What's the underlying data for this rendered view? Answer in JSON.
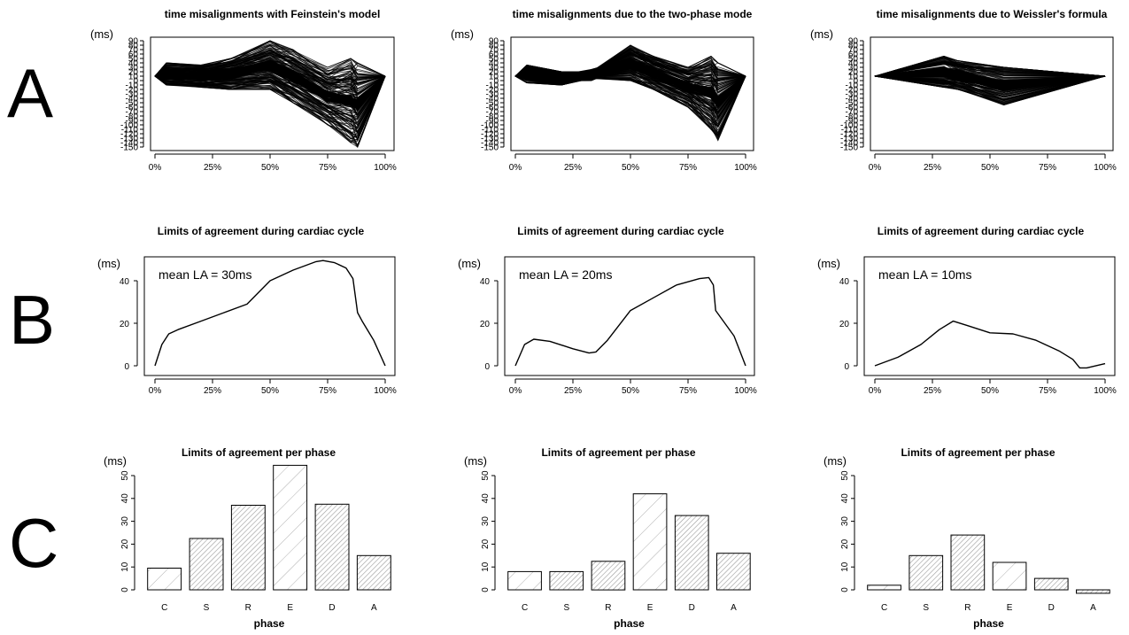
{
  "row_labels": [
    "A",
    "B",
    "C"
  ],
  "chart_data": [
    {
      "panel": "A1",
      "type": "line",
      "title": "time misalignments with Feinstein's model",
      "unit_label": "(ms)",
      "xticks": [
        "0%",
        "25%",
        "50%",
        "75%",
        "100%"
      ],
      "yticks": [
        90,
        80,
        70,
        60,
        50,
        40,
        30,
        20,
        10,
        0,
        -10,
        -20,
        -30,
        -40,
        -50,
        -60,
        -70,
        -80,
        -90,
        -100,
        -110,
        -120,
        -130,
        -140,
        -150
      ],
      "xlim": [
        0,
        100
      ],
      "ylim": [
        -150,
        90
      ],
      "description_of_series": "many overlapping subject curves",
      "series_envelope": {
        "x": [
          0,
          5,
          20,
          33,
          50,
          60,
          75,
          85,
          88,
          100
        ],
        "upper": [
          10,
          40,
          35,
          50,
          90,
          70,
          30,
          50,
          40,
          10
        ],
        "lower": [
          10,
          -10,
          -15,
          -20,
          -20,
          -50,
          -100,
          -140,
          -150,
          10
        ]
      }
    },
    {
      "panel": "A2",
      "type": "line",
      "title": "time misalignments due to the two-phase mode",
      "unit_label": "(ms)",
      "xticks": [
        "0%",
        "25%",
        "50%",
        "75%",
        "100%"
      ],
      "yticks": [
        90,
        80,
        70,
        60,
        50,
        40,
        30,
        20,
        10,
        0,
        -10,
        -20,
        -30,
        -40,
        -50,
        -60,
        -70,
        -80,
        -90,
        -100,
        -110,
        -120,
        -130,
        -140,
        -150
      ],
      "xlim": [
        0,
        100
      ],
      "ylim": [
        -150,
        90
      ],
      "description_of_series": "many overlapping subject curves",
      "series_envelope": {
        "x": [
          0,
          5,
          20,
          33,
          50,
          60,
          75,
          85,
          88,
          100
        ],
        "upper": [
          10,
          35,
          20,
          20,
          80,
          55,
          30,
          55,
          40,
          10
        ],
        "lower": [
          10,
          -5,
          -10,
          5,
          0,
          -20,
          -60,
          -110,
          -135,
          10
        ]
      }
    },
    {
      "panel": "A3",
      "type": "line",
      "title": "time misalignments due to Weissler's formula",
      "unit_label": "(ms)",
      "xticks": [
        "0%",
        "25%",
        "50%",
        "75%",
        "100%"
      ],
      "yticks": [
        90,
        80,
        70,
        60,
        50,
        40,
        30,
        20,
        10,
        0,
        -10,
        -20,
        -30,
        -40,
        -50,
        -60,
        -70,
        -80,
        -90,
        -100,
        -110,
        -120,
        -130,
        -140,
        -150
      ],
      "xlim": [
        0,
        100
      ],
      "ylim": [
        -150,
        90
      ],
      "description_of_series": "many overlapping subject curves",
      "series_envelope": {
        "x": [
          0,
          30,
          36,
          56,
          100
        ],
        "upper": [
          10,
          55,
          45,
          30,
          10
        ],
        "lower": [
          10,
          -15,
          -20,
          -55,
          10
        ]
      }
    },
    {
      "panel": "B1",
      "type": "line",
      "title": "Limits of agreement during cardiac cycle",
      "unit_label": "(ms)",
      "annotation": "mean LA = 30ms",
      "xticks": [
        "0%",
        "25%",
        "50%",
        "75%",
        "100%"
      ],
      "yticks": [
        0,
        20,
        40
      ],
      "xlim": [
        0,
        100
      ],
      "ylim": [
        0,
        50
      ],
      "x": [
        0,
        3,
        6,
        10,
        20,
        30,
        40,
        50,
        60,
        70,
        73,
        78,
        83,
        86,
        88,
        90,
        95,
        100
      ],
      "y": [
        0,
        10,
        15,
        17,
        21,
        25,
        29,
        40,
        45,
        49,
        49.5,
        48.5,
        46,
        41,
        25,
        21,
        12,
        0
      ]
    },
    {
      "panel": "B2",
      "type": "line",
      "title": "Limits of agreement during cardiac cycle",
      "unit_label": "(ms)",
      "annotation": "mean LA = 20ms",
      "xticks": [
        "0%",
        "25%",
        "50%",
        "75%",
        "100%"
      ],
      "yticks": [
        0,
        20,
        40
      ],
      "xlim": [
        0,
        100
      ],
      "ylim": [
        0,
        50
      ],
      "x": [
        0,
        4,
        8,
        15,
        25,
        32,
        35,
        40,
        50,
        60,
        70,
        80,
        84,
        86,
        87,
        95,
        100
      ],
      "y": [
        0,
        10,
        12.5,
        11.5,
        8,
        6,
        6.5,
        12,
        26,
        32,
        38,
        41,
        41.5,
        38,
        26,
        14,
        0
      ]
    },
    {
      "panel": "B3",
      "type": "line",
      "title": "Limits of agreement during cardiac cycle",
      "unit_label": "(ms)",
      "annotation": "mean LA = 10ms",
      "xticks": [
        "0%",
        "25%",
        "50%",
        "75%",
        "100%"
      ],
      "yticks": [
        0,
        20,
        40
      ],
      "xlim": [
        0,
        100
      ],
      "ylim": [
        0,
        50
      ],
      "x": [
        0,
        10,
        20,
        28,
        34,
        40,
        50,
        60,
        70,
        80,
        86,
        89,
        92,
        100
      ],
      "y": [
        0,
        4,
        10,
        17,
        21,
        19,
        15.5,
        15,
        12,
        7,
        3,
        -1,
        -1,
        1
      ]
    },
    {
      "panel": "C1",
      "type": "bar",
      "title": "Limits of agreement per phase",
      "unit_label": "(ms)",
      "xlabel": "phase",
      "categories": [
        "C",
        "S",
        "R",
        "E",
        "D",
        "A"
      ],
      "values": [
        9.5,
        22.5,
        37,
        54.5,
        37.5,
        15
      ],
      "yticks": [
        0,
        10,
        20,
        30,
        40,
        50
      ],
      "ylim": [
        0,
        50
      ]
    },
    {
      "panel": "C2",
      "type": "bar",
      "title": "Limits of agreement per phase",
      "unit_label": "(ms)",
      "xlabel": "phase",
      "categories": [
        "C",
        "S",
        "R",
        "E",
        "D",
        "A"
      ],
      "values": [
        8,
        8,
        12.5,
        42,
        32.5,
        16
      ],
      "yticks": [
        0,
        10,
        20,
        30,
        40,
        50
      ],
      "ylim": [
        0,
        50
      ]
    },
    {
      "panel": "C3",
      "type": "bar",
      "title": "Limits of agreement per phase",
      "unit_label": "(ms)",
      "xlabel": "phase",
      "categories": [
        "C",
        "S",
        "R",
        "E",
        "D",
        "A"
      ],
      "values": [
        2,
        15,
        24,
        12,
        5,
        -1.5
      ],
      "yticks": [
        0,
        10,
        20,
        30,
        40,
        50
      ],
      "ylim": [
        0,
        50
      ]
    }
  ]
}
